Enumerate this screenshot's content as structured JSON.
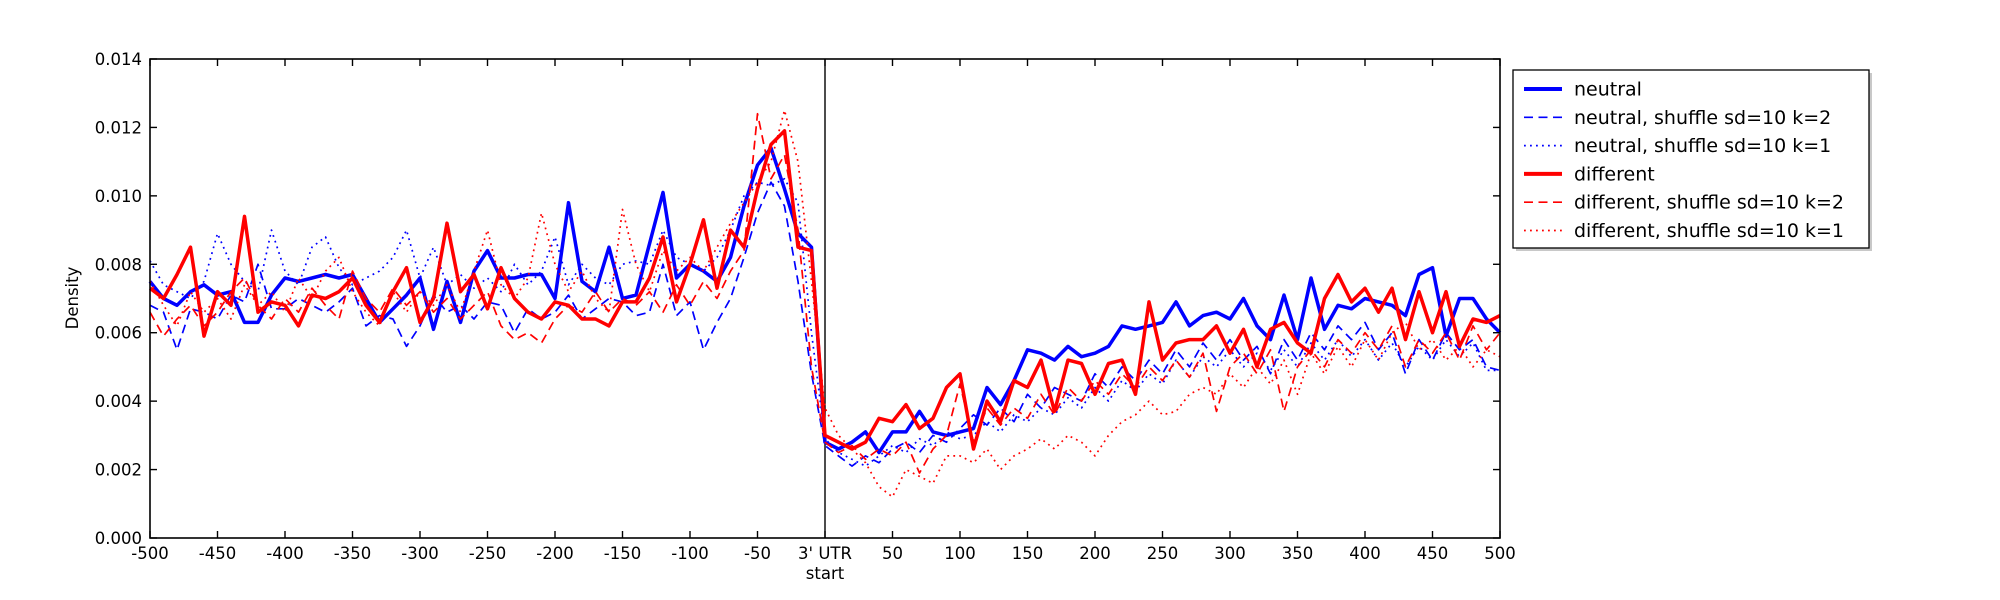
{
  "figure": {
    "ylabel": "Density",
    "x_zero_label_line1": "3' UTR",
    "x_zero_label_line2": "start",
    "axis_color": "#000000",
    "background": "#ffffff"
  },
  "chart_data": {
    "type": "line",
    "title": "",
    "xlabel": "start",
    "ylabel": "Density",
    "xlim": [
      -500,
      500
    ],
    "ylim": [
      0,
      0.014
    ],
    "grid": false,
    "vline_x": 0,
    "legend_position": "outside-right-top",
    "x_ticks": [
      {
        "v": -500,
        "label": "-500"
      },
      {
        "v": -450,
        "label": "-450"
      },
      {
        "v": -400,
        "label": "-400"
      },
      {
        "v": -350,
        "label": "-350"
      },
      {
        "v": -300,
        "label": "-300"
      },
      {
        "v": -250,
        "label": "-250"
      },
      {
        "v": -200,
        "label": "-200"
      },
      {
        "v": -150,
        "label": "-150"
      },
      {
        "v": -100,
        "label": "-100"
      },
      {
        "v": -50,
        "label": "-50"
      },
      {
        "v": 0,
        "label": "3' UTR",
        "label2": "start"
      },
      {
        "v": 50,
        "label": "50"
      },
      {
        "v": 100,
        "label": "100"
      },
      {
        "v": 150,
        "label": "150"
      },
      {
        "v": 200,
        "label": "200"
      },
      {
        "v": 250,
        "label": "250"
      },
      {
        "v": 300,
        "label": "300"
      },
      {
        "v": 350,
        "label": "350"
      },
      {
        "v": 400,
        "label": "400"
      },
      {
        "v": 450,
        "label": "450"
      },
      {
        "v": 500,
        "label": "500"
      }
    ],
    "y_ticks": [
      {
        "v": 0.0,
        "label": "0.000"
      },
      {
        "v": 0.002,
        "label": "0.002"
      },
      {
        "v": 0.004,
        "label": "0.004"
      },
      {
        "v": 0.006,
        "label": "0.006"
      },
      {
        "v": 0.008,
        "label": "0.008"
      },
      {
        "v": 0.01,
        "label": "0.010"
      },
      {
        "v": 0.012,
        "label": "0.012"
      },
      {
        "v": 0.014,
        "label": "0.014"
      }
    ],
    "x": [
      -500,
      -490,
      -480,
      -470,
      -460,
      -450,
      -440,
      -430,
      -420,
      -410,
      -400,
      -390,
      -380,
      -370,
      -360,
      -350,
      -340,
      -330,
      -320,
      -310,
      -300,
      -290,
      -280,
      -270,
      -260,
      -250,
      -240,
      -230,
      -220,
      -210,
      -200,
      -190,
      -180,
      -170,
      -160,
      -150,
      -140,
      -130,
      -120,
      -110,
      -100,
      -90,
      -80,
      -70,
      -60,
      -50,
      -40,
      -30,
      -20,
      -10,
      0,
      10,
      20,
      30,
      40,
      50,
      60,
      70,
      80,
      90,
      100,
      110,
      120,
      130,
      140,
      150,
      160,
      170,
      180,
      190,
      200,
      210,
      220,
      230,
      240,
      250,
      260,
      270,
      280,
      290,
      300,
      310,
      320,
      330,
      340,
      350,
      360,
      370,
      380,
      390,
      400,
      410,
      420,
      430,
      440,
      450,
      460,
      470,
      480,
      490,
      500
    ],
    "series": [
      {
        "name": "neutral",
        "slug": "neutral",
        "color": "#0000ff",
        "style": "solid",
        "width": 3.5,
        "values": [
          0.0075,
          0.007,
          0.0068,
          0.0072,
          0.0074,
          0.0071,
          0.0072,
          0.0063,
          0.0063,
          0.0071,
          0.0076,
          0.0075,
          0.0076,
          0.0077,
          0.0076,
          0.0077,
          0.007,
          0.0063,
          0.0067,
          0.0071,
          0.0076,
          0.0061,
          0.0075,
          0.0063,
          0.0078,
          0.0084,
          0.0076,
          0.0076,
          0.0077,
          0.0077,
          0.007,
          0.0098,
          0.0075,
          0.0072,
          0.0085,
          0.007,
          0.0071,
          0.0086,
          0.0101,
          0.0076,
          0.008,
          0.0078,
          0.0075,
          0.0082,
          0.0097,
          0.0109,
          0.0114,
          0.0102,
          0.0089,
          0.0085,
          0.0028,
          0.0026,
          0.0028,
          0.0031,
          0.0025,
          0.0031,
          0.0031,
          0.0037,
          0.0031,
          0.003,
          0.0031,
          0.0032,
          0.0044,
          0.0039,
          0.0046,
          0.0055,
          0.0054,
          0.0052,
          0.0056,
          0.0053,
          0.0054,
          0.0056,
          0.0062,
          0.0061,
          0.0062,
          0.0063,
          0.0069,
          0.0062,
          0.0065,
          0.0066,
          0.0064,
          0.007,
          0.0062,
          0.0058,
          0.0071,
          0.0058,
          0.0076,
          0.0061,
          0.0068,
          0.0067,
          0.007,
          0.0069,
          0.0068,
          0.0065,
          0.0077,
          0.0079,
          0.0059,
          0.007,
          0.007,
          0.0064,
          0.006
        ]
      },
      {
        "name": "neutral, shuffle sd=10 k=2",
        "slug": "neutral-shuffle-k2",
        "color": "#0000ff",
        "style": "dashed",
        "width": 1.7,
        "values": [
          0.0068,
          0.0066,
          0.0055,
          0.0067,
          0.0066,
          0.0064,
          0.0071,
          0.0069,
          0.008,
          0.0067,
          0.0067,
          0.007,
          0.0068,
          0.0066,
          0.0069,
          0.0073,
          0.0062,
          0.0065,
          0.0064,
          0.0056,
          0.0062,
          0.0071,
          0.0066,
          0.0068,
          0.0064,
          0.0069,
          0.0068,
          0.006,
          0.0067,
          0.0064,
          0.0066,
          0.0071,
          0.0064,
          0.0067,
          0.007,
          0.0069,
          0.0065,
          0.0066,
          0.008,
          0.0065,
          0.0069,
          0.0055,
          0.0063,
          0.007,
          0.0082,
          0.0095,
          0.0104,
          0.0097,
          0.0075,
          0.0048,
          0.0027,
          0.0024,
          0.0021,
          0.0024,
          0.0022,
          0.0026,
          0.0028,
          0.0025,
          0.003,
          0.0028,
          0.0032,
          0.0036,
          0.0033,
          0.0038,
          0.0034,
          0.0042,
          0.0038,
          0.0044,
          0.0042,
          0.004,
          0.0048,
          0.0044,
          0.005,
          0.0046,
          0.0052,
          0.0048,
          0.0055,
          0.005,
          0.0057,
          0.0052,
          0.0058,
          0.0052,
          0.0056,
          0.0048,
          0.0058,
          0.0052,
          0.006,
          0.0055,
          0.0062,
          0.0058,
          0.0063,
          0.0055,
          0.006,
          0.0048,
          0.0058,
          0.0052,
          0.006,
          0.0055,
          0.0058,
          0.005,
          0.0049
        ]
      },
      {
        "name": "neutral, shuffle sd=10 k=1",
        "slug": "neutral-shuffle-k1",
        "color": "#0000ff",
        "style": "dotted",
        "width": 1.7,
        "values": [
          0.0081,
          0.0074,
          0.0072,
          0.007,
          0.0075,
          0.0089,
          0.008,
          0.0075,
          0.0072,
          0.009,
          0.0078,
          0.0074,
          0.0085,
          0.0088,
          0.0079,
          0.0074,
          0.0076,
          0.0078,
          0.0082,
          0.009,
          0.0076,
          0.0085,
          0.0074,
          0.0077,
          0.0073,
          0.0076,
          0.0072,
          0.008,
          0.0074,
          0.0078,
          0.0088,
          0.0074,
          0.008,
          0.0076,
          0.0074,
          0.008,
          0.0081,
          0.008,
          0.009,
          0.0082,
          0.008,
          0.0078,
          0.0082,
          0.009,
          0.01,
          0.0104,
          0.0103,
          0.0105,
          0.0098,
          0.006,
          0.0029,
          0.0025,
          0.0023,
          0.0021,
          0.0024,
          0.0027,
          0.0025,
          0.0029,
          0.0027,
          0.0031,
          0.0029,
          0.003,
          0.0034,
          0.0031,
          0.0036,
          0.0034,
          0.0038,
          0.0036,
          0.0041,
          0.0038,
          0.0044,
          0.004,
          0.0046,
          0.0043,
          0.0048,
          0.0045,
          0.0052,
          0.0047,
          0.0053,
          0.005,
          0.0055,
          0.005,
          0.0054,
          0.0049,
          0.0055,
          0.005,
          0.0057,
          0.0052,
          0.0058,
          0.0053,
          0.0058,
          0.0052,
          0.0057,
          0.005,
          0.0056,
          0.0052,
          0.0058,
          0.0053,
          0.0057,
          0.0049,
          0.0049
        ]
      },
      {
        "name": "different",
        "slug": "different",
        "color": "#ff0000",
        "style": "solid",
        "width": 3.5,
        "values": [
          0.0073,
          0.007,
          0.0077,
          0.0085,
          0.0059,
          0.0072,
          0.0068,
          0.0094,
          0.0066,
          0.0069,
          0.0068,
          0.0062,
          0.0071,
          0.007,
          0.0072,
          0.0076,
          0.0068,
          0.0063,
          0.0072,
          0.0079,
          0.0063,
          0.007,
          0.0092,
          0.0072,
          0.0077,
          0.0067,
          0.0079,
          0.007,
          0.0066,
          0.0064,
          0.0069,
          0.0068,
          0.0064,
          0.0064,
          0.0062,
          0.0069,
          0.0069,
          0.0076,
          0.0088,
          0.0069,
          0.008,
          0.0093,
          0.0073,
          0.009,
          0.0085,
          0.0102,
          0.0115,
          0.0119,
          0.0085,
          0.0084,
          0.003,
          0.0028,
          0.0026,
          0.0028,
          0.0035,
          0.0034,
          0.0039,
          0.0032,
          0.0035,
          0.0044,
          0.0048,
          0.0026,
          0.004,
          0.0034,
          0.0046,
          0.0044,
          0.0052,
          0.0037,
          0.0052,
          0.0051,
          0.0042,
          0.0051,
          0.0052,
          0.0042,
          0.0069,
          0.0052,
          0.0057,
          0.0058,
          0.0058,
          0.0062,
          0.0054,
          0.0061,
          0.005,
          0.0061,
          0.0063,
          0.0057,
          0.0054,
          0.007,
          0.0077,
          0.0069,
          0.0073,
          0.0066,
          0.0073,
          0.0058,
          0.0072,
          0.006,
          0.0072,
          0.0056,
          0.0064,
          0.0063,
          0.0065
        ]
      },
      {
        "name": "different, shuffle sd=10 k=2",
        "slug": "different-shuffle-k2",
        "color": "#ff0000",
        "style": "dashed",
        "width": 1.7,
        "values": [
          0.0066,
          0.0059,
          0.0064,
          0.0068,
          0.0062,
          0.0066,
          0.0072,
          0.0076,
          0.0068,
          0.0064,
          0.007,
          0.0066,
          0.0073,
          0.0068,
          0.0064,
          0.0078,
          0.007,
          0.0066,
          0.0073,
          0.0068,
          0.0072,
          0.0066,
          0.007,
          0.0064,
          0.0068,
          0.0072,
          0.0062,
          0.0058,
          0.006,
          0.0057,
          0.0064,
          0.0068,
          0.0066,
          0.0072,
          0.0066,
          0.007,
          0.0068,
          0.0072,
          0.0066,
          0.0074,
          0.0068,
          0.0075,
          0.007,
          0.0078,
          0.0084,
          0.0124,
          0.0105,
          0.0112,
          0.009,
          0.005,
          0.0028,
          0.0025,
          0.0027,
          0.0023,
          0.0026,
          0.0024,
          0.0028,
          0.0019,
          0.0026,
          0.003,
          0.0045,
          0.0028,
          0.0038,
          0.0033,
          0.0038,
          0.0035,
          0.0042,
          0.0036,
          0.0044,
          0.004,
          0.0046,
          0.0042,
          0.0048,
          0.0044,
          0.005,
          0.0046,
          0.0052,
          0.0047,
          0.0054,
          0.0037,
          0.005,
          0.0054,
          0.0048,
          0.0055,
          0.0037,
          0.005,
          0.0055,
          0.005,
          0.0058,
          0.0054,
          0.006,
          0.0055,
          0.0062,
          0.005,
          0.0058,
          0.0054,
          0.006,
          0.0052,
          0.0062,
          0.0055,
          0.006
        ]
      },
      {
        "name": "different, shuffle sd=10 k=1",
        "slug": "different-shuffle-k1",
        "color": "#ff0000",
        "style": "dotted",
        "width": 1.7,
        "values": [
          0.0075,
          0.0068,
          0.0062,
          0.0072,
          0.0066,
          0.007,
          0.0064,
          0.0074,
          0.0068,
          0.0072,
          0.0066,
          0.0076,
          0.007,
          0.0078,
          0.0082,
          0.0072,
          0.0066,
          0.0062,
          0.0072,
          0.0066,
          0.0072,
          0.0068,
          0.0074,
          0.0066,
          0.0078,
          0.009,
          0.0074,
          0.007,
          0.0076,
          0.0095,
          0.008,
          0.0072,
          0.0078,
          0.007,
          0.0066,
          0.0096,
          0.008,
          0.0072,
          0.0084,
          0.0078,
          0.0082,
          0.0078,
          0.0085,
          0.0092,
          0.0098,
          0.0104,
          0.011,
          0.0125,
          0.011,
          0.0075,
          0.0038,
          0.003,
          0.0026,
          0.0022,
          0.0015,
          0.0012,
          0.002,
          0.0018,
          0.0016,
          0.0024,
          0.0024,
          0.0022,
          0.0026,
          0.002,
          0.0024,
          0.0026,
          0.0029,
          0.0026,
          0.003,
          0.0028,
          0.0024,
          0.003,
          0.0034,
          0.0036,
          0.004,
          0.0036,
          0.0037,
          0.0042,
          0.0044,
          0.0042,
          0.0048,
          0.0044,
          0.005,
          0.0045,
          0.0052,
          0.0042,
          0.0054,
          0.0048,
          0.0056,
          0.005,
          0.0058,
          0.0052,
          0.006,
          0.0063,
          0.0055,
          0.0058,
          0.0052,
          0.0056,
          0.005,
          0.0055,
          0.0053
        ]
      }
    ]
  }
}
